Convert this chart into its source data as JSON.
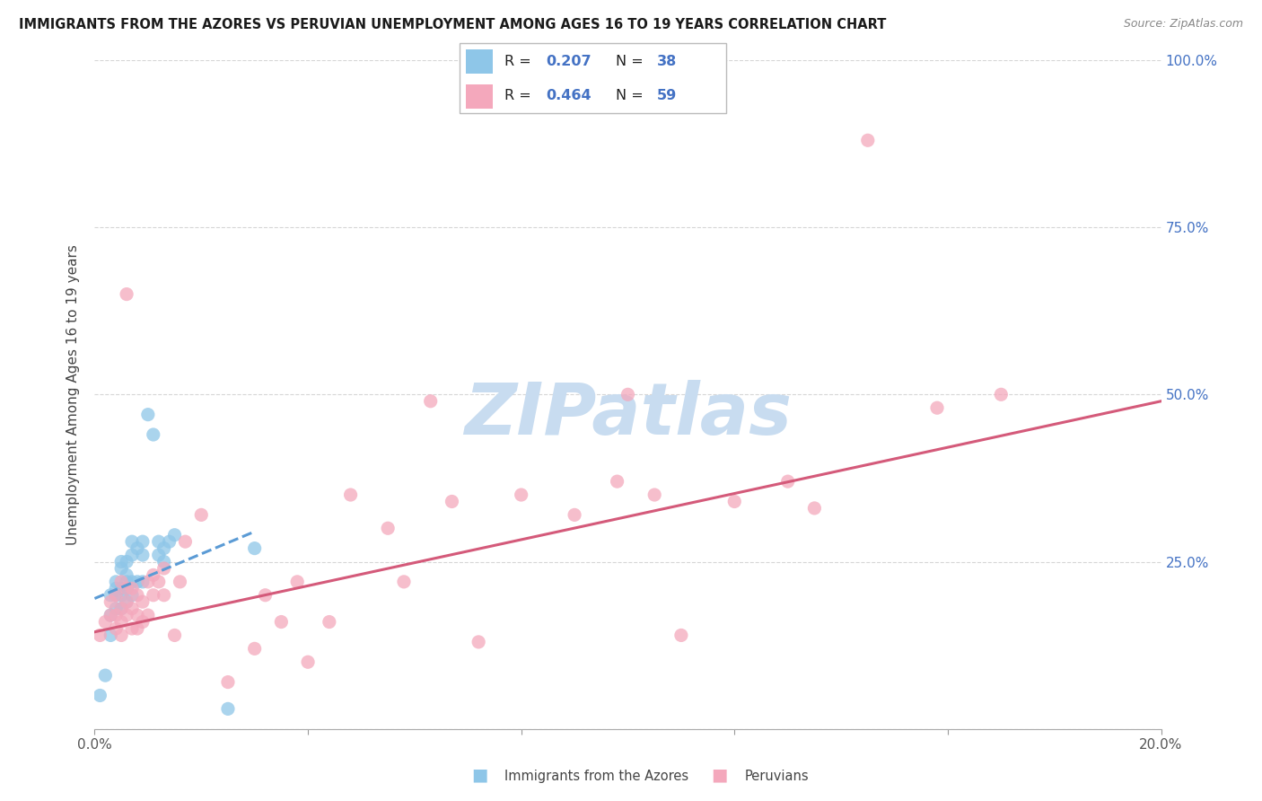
{
  "title": "IMMIGRANTS FROM THE AZORES VS PERUVIAN UNEMPLOYMENT AMONG AGES 16 TO 19 YEARS CORRELATION CHART",
  "source": "Source: ZipAtlas.com",
  "ylabel": "Unemployment Among Ages 16 to 19 years",
  "xlim": [
    0.0,
    0.2
  ],
  "ylim": [
    0.0,
    1.0
  ],
  "yticks": [
    0.0,
    0.25,
    0.5,
    0.75,
    1.0
  ],
  "right_ytick_labels": [
    "25.0%",
    "50.0%",
    "75.0%",
    "100.0%"
  ],
  "right_ytick_positions": [
    0.25,
    0.5,
    0.75,
    1.0
  ],
  "xtick_positions": [
    0.0,
    0.04,
    0.08,
    0.12,
    0.16,
    0.2
  ],
  "legend_labels": [
    "Immigrants from the Azores",
    "Peruvians"
  ],
  "legend_R": [
    "0.207",
    "0.464"
  ],
  "legend_N": [
    "38",
    "59"
  ],
  "blue_scatter_color": "#8EC6E8",
  "pink_scatter_color": "#F4A8BC",
  "blue_trend_color": "#5B9BD5",
  "pink_trend_color": "#D45A7A",
  "text_color_blue": "#4472C4",
  "text_color_pink": "#D45A7A",
  "grid_color": "#CCCCCC",
  "watermark_color": "#C8DCF0",
  "blue_scatter_x": [
    0.001,
    0.002,
    0.003,
    0.003,
    0.003,
    0.004,
    0.004,
    0.004,
    0.004,
    0.005,
    0.005,
    0.005,
    0.005,
    0.005,
    0.006,
    0.006,
    0.006,
    0.006,
    0.006,
    0.007,
    0.007,
    0.007,
    0.007,
    0.008,
    0.008,
    0.009,
    0.009,
    0.009,
    0.01,
    0.011,
    0.012,
    0.012,
    0.013,
    0.013,
    0.014,
    0.015,
    0.025,
    0.03
  ],
  "blue_scatter_y": [
    0.05,
    0.08,
    0.14,
    0.17,
    0.2,
    0.18,
    0.2,
    0.21,
    0.22,
    0.18,
    0.2,
    0.21,
    0.24,
    0.25,
    0.19,
    0.21,
    0.22,
    0.23,
    0.25,
    0.2,
    0.22,
    0.26,
    0.28,
    0.22,
    0.27,
    0.22,
    0.26,
    0.28,
    0.47,
    0.44,
    0.26,
    0.28,
    0.25,
    0.27,
    0.28,
    0.29,
    0.03,
    0.27
  ],
  "pink_scatter_x": [
    0.001,
    0.002,
    0.003,
    0.003,
    0.004,
    0.004,
    0.004,
    0.005,
    0.005,
    0.005,
    0.005,
    0.006,
    0.006,
    0.006,
    0.006,
    0.007,
    0.007,
    0.007,
    0.008,
    0.008,
    0.008,
    0.009,
    0.009,
    0.01,
    0.01,
    0.011,
    0.011,
    0.012,
    0.013,
    0.013,
    0.015,
    0.016,
    0.017,
    0.02,
    0.025,
    0.03,
    0.032,
    0.035,
    0.038,
    0.04,
    0.044,
    0.048,
    0.055,
    0.058,
    0.063,
    0.067,
    0.072,
    0.08,
    0.09,
    0.098,
    0.1,
    0.105,
    0.11,
    0.12,
    0.13,
    0.135,
    0.145,
    0.158,
    0.17
  ],
  "pink_scatter_y": [
    0.14,
    0.16,
    0.17,
    0.19,
    0.15,
    0.17,
    0.2,
    0.14,
    0.16,
    0.18,
    0.22,
    0.17,
    0.19,
    0.21,
    0.65,
    0.15,
    0.18,
    0.21,
    0.15,
    0.17,
    0.2,
    0.16,
    0.19,
    0.17,
    0.22,
    0.2,
    0.23,
    0.22,
    0.2,
    0.24,
    0.14,
    0.22,
    0.28,
    0.32,
    0.07,
    0.12,
    0.2,
    0.16,
    0.22,
    0.1,
    0.16,
    0.35,
    0.3,
    0.22,
    0.49,
    0.34,
    0.13,
    0.35,
    0.32,
    0.37,
    0.5,
    0.35,
    0.14,
    0.34,
    0.37,
    0.33,
    0.88,
    0.48,
    0.5
  ],
  "blue_trend_x0": 0.0,
  "blue_trend_x1": 0.03,
  "blue_trend_y0": 0.195,
  "blue_trend_y1": 0.295,
  "pink_trend_x0": 0.0,
  "pink_trend_x1": 0.2,
  "pink_trend_y0": 0.145,
  "pink_trend_y1": 0.49
}
